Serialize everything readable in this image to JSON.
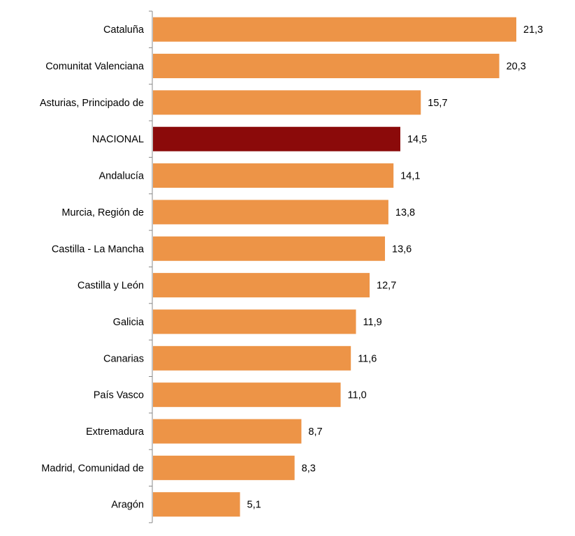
{
  "chart_data": {
    "type": "bar",
    "orientation": "horizontal",
    "categories": [
      "Cataluña",
      "Comunitat Valenciana",
      "Asturias, Principado de",
      "NACIONAL",
      "Andalucía",
      "Murcia, Región de",
      "Castilla - La Mancha",
      "Castilla y León",
      "Galicia",
      "Canarias",
      "País Vasco",
      "Extremadura",
      "Madrid, Comunidad de",
      "Aragón"
    ],
    "values": [
      21.3,
      20.3,
      15.7,
      14.5,
      14.1,
      13.8,
      13.6,
      12.7,
      11.9,
      11.6,
      11.0,
      8.7,
      8.3,
      5.1
    ],
    "value_labels": [
      "21,3",
      "20,3",
      "15,7",
      "14,5",
      "14,1",
      "13,8",
      "13,6",
      "12,7",
      "11,9",
      "11,6",
      "11,0",
      "8,7",
      "8,3",
      "5,1"
    ],
    "highlight_category": "NACIONAL",
    "bar_color": "#ED9447",
    "highlight_color": "#8B0A0A",
    "title": "",
    "xlabel": "",
    "ylabel": "",
    "xlim": [
      0,
      21.3
    ],
    "grid": false,
    "legend": "none"
  }
}
